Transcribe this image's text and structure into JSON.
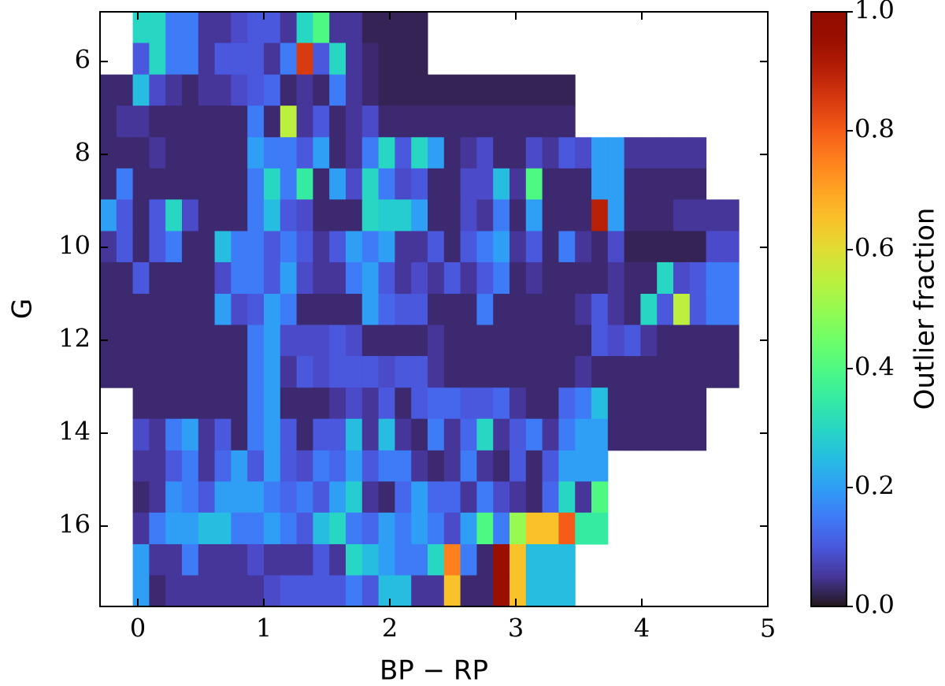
{
  "chart_data": {
    "type": "heatmap",
    "colormap": "turbo",
    "xlabel": "BP − RP",
    "ylabel": "G",
    "colorbar_label": "Outlier fraction",
    "xlim": [
      -0.3,
      5
    ],
    "ylim": [
      17.73,
      4.93
    ],
    "clim": [
      0,
      1
    ],
    "xticks": [
      0,
      1,
      2,
      3,
      4,
      5
    ],
    "yticks": [
      6,
      8,
      10,
      12,
      14,
      16
    ],
    "cticks": [
      {
        "value": 0,
        "label": "0.0"
      },
      {
        "value": 0.2,
        "label": "0.2"
      },
      {
        "value": 0.4,
        "label": "0.4"
      },
      {
        "value": 0.6,
        "label": "0.6"
      },
      {
        "value": 0.8,
        "label": "0.8"
      },
      {
        "value": 1,
        "label": "1.0"
      }
    ],
    "xbins": [
      -0.3,
      -0.17,
      -0.04,
      0.09,
      0.22,
      0.35,
      0.48,
      0.61,
      0.74,
      0.87,
      1.0,
      1.13,
      1.26,
      1.39,
      1.52,
      1.65,
      1.78,
      1.91,
      2.04,
      2.17,
      2.3,
      2.43,
      2.56,
      2.69,
      2.82,
      2.95,
      3.08,
      3.21,
      3.34,
      3.47,
      3.6,
      3.73,
      3.86,
      3.99,
      4.12,
      4.25,
      4.38,
      4.51,
      4.64,
      4.77
    ],
    "ybins": [
      4.93,
      5.6,
      6.28,
      6.95,
      7.63,
      8.3,
      8.97,
      9.65,
      10.32,
      11.0,
      11.67,
      12.34,
      13.02,
      13.69,
      14.37,
      15.04,
      15.71,
      16.39,
      17.06,
      17.73
    ],
    "values": [
      [
        null,
        null,
        0.3,
        0.3,
        0.15,
        0.15,
        0.05,
        0.05,
        0.08,
        0.1,
        0.1,
        0.05,
        0.3,
        0.4,
        0.05,
        0.05,
        0.02,
        0.02,
        0.02,
        0.02,
        null,
        null,
        null,
        null,
        null,
        null,
        null,
        null,
        null,
        null,
        null,
        null,
        null,
        null,
        null,
        null,
        null,
        null,
        null
      ],
      [
        null,
        null,
        0.1,
        0.3,
        0.15,
        0.15,
        0.05,
        0.1,
        0.1,
        0.1,
        0.05,
        0.15,
        0.85,
        0.1,
        0.3,
        0.05,
        0.03,
        0.02,
        0.02,
        0.02,
        null,
        null,
        null,
        null,
        null,
        null,
        null,
        null,
        null,
        null,
        null,
        null,
        null,
        null,
        null,
        null,
        null,
        null,
        null
      ],
      [
        0.03,
        0.03,
        0.25,
        0.08,
        0.05,
        0.03,
        0.05,
        0.05,
        0.08,
        0.1,
        0.12,
        0.03,
        0.05,
        0.03,
        0.15,
        0.05,
        0.03,
        0.02,
        0.02,
        0.02,
        0.02,
        0.02,
        0.02,
        0.02,
        0.02,
        0.02,
        0.02,
        0.02,
        0.02,
        null,
        null,
        null,
        null,
        null,
        null,
        null,
        null,
        null,
        null
      ],
      [
        0.03,
        0.05,
        0.05,
        0.03,
        0.03,
        0.03,
        0.03,
        0.03,
        0.03,
        0.15,
        0.03,
        0.55,
        0.05,
        0.1,
        0.03,
        0.05,
        0.08,
        0.03,
        0.03,
        0.03,
        0.03,
        0.03,
        0.03,
        0.03,
        0.03,
        0.03,
        0.03,
        0.03,
        0.03,
        null,
        null,
        null,
        null,
        null,
        null,
        null,
        null,
        null,
        null
      ],
      [
        0.03,
        0.03,
        0.03,
        0.05,
        0.03,
        0.03,
        0.03,
        0.03,
        0.03,
        0.2,
        0.15,
        0.15,
        0.1,
        0.2,
        0.03,
        0.05,
        0.15,
        0.3,
        0.1,
        0.3,
        0.2,
        0.03,
        0.05,
        0.08,
        0.03,
        0.03,
        0.08,
        0.05,
        0.1,
        0.08,
        0.2,
        0.2,
        0.05,
        0.05,
        0.05,
        0.05,
        0.05,
        null,
        null
      ],
      [
        0.03,
        0.15,
        0.03,
        0.03,
        0.03,
        0.03,
        0.03,
        0.03,
        0.03,
        0.15,
        0.3,
        0.15,
        0.35,
        0.03,
        0.2,
        0.08,
        0.3,
        0.15,
        0.08,
        0.1,
        0.03,
        0.03,
        0.08,
        0.08,
        0.25,
        0.05,
        0.4,
        0.03,
        0.03,
        0.03,
        0.2,
        0.2,
        0.03,
        0.03,
        0.03,
        0.03,
        0.03,
        null,
        null
      ],
      [
        0.2,
        0.1,
        0.03,
        0.1,
        0.3,
        0.08,
        0.03,
        0.03,
        0.03,
        0.15,
        0.25,
        0.1,
        0.08,
        0.03,
        0.03,
        0.03,
        0.3,
        0.28,
        0.28,
        0.2,
        0.03,
        0.03,
        0.08,
        0.05,
        0.15,
        0.03,
        0.2,
        0.03,
        0.03,
        0.03,
        0.9,
        0.2,
        0.03,
        0.03,
        0.03,
        0.05,
        0.05,
        0.05,
        0.05
      ],
      [
        0.05,
        0.1,
        0.03,
        0.1,
        0.15,
        0.03,
        0.03,
        0.25,
        0.15,
        0.15,
        0.1,
        0.15,
        0.1,
        0.05,
        0.1,
        0.2,
        0.15,
        0.2,
        0.05,
        0.05,
        0.1,
        0.03,
        0.1,
        0.15,
        0.2,
        0.05,
        0.1,
        0.03,
        0.15,
        0.05,
        0.03,
        0.08,
        0.02,
        0.02,
        0.02,
        0.02,
        0.02,
        0.08,
        0.08
      ],
      [
        0.03,
        0.03,
        0.1,
        0.03,
        0.03,
        0.03,
        0.03,
        0.08,
        0.15,
        0.15,
        0.1,
        0.2,
        0.08,
        0.05,
        0.05,
        0.15,
        0.2,
        0.1,
        0.05,
        0.08,
        0.05,
        0.1,
        0.05,
        0.1,
        0.15,
        0.03,
        0.05,
        0.03,
        0.03,
        0.03,
        0.03,
        0.05,
        0.03,
        0.03,
        0.3,
        0.08,
        0.1,
        0.15,
        0.15
      ],
      [
        0.03,
        0.03,
        0.03,
        0.03,
        0.03,
        0.03,
        0.03,
        0.2,
        0.08,
        0.1,
        0.2,
        0.15,
        0.03,
        0.03,
        0.03,
        0.03,
        0.2,
        0.12,
        0.1,
        0.1,
        0.03,
        0.03,
        0.03,
        0.15,
        0.03,
        0.03,
        0.03,
        0.03,
        0.03,
        0.05,
        0.1,
        0.05,
        0.03,
        0.3,
        0.1,
        0.55,
        0.1,
        0.15,
        0.15
      ],
      [
        0.03,
        0.03,
        0.03,
        0.03,
        0.03,
        0.03,
        0.03,
        0.03,
        0.03,
        0.15,
        0.2,
        0.08,
        0.08,
        0.08,
        0.1,
        0.08,
        0.03,
        0.03,
        0.03,
        0.03,
        0.05,
        0.03,
        0.03,
        0.03,
        0.03,
        0.03,
        0.03,
        0.03,
        0.03,
        0.03,
        0.1,
        0.08,
        0.1,
        0.05,
        0.03,
        0.03,
        0.03,
        0.03,
        0.03
      ],
      [
        0.03,
        0.03,
        0.03,
        0.03,
        0.03,
        0.03,
        0.03,
        0.03,
        0.03,
        0.15,
        0.2,
        0.05,
        0.1,
        0.08,
        0.1,
        0.1,
        0.1,
        0.08,
        0.1,
        0.1,
        0.05,
        0.03,
        0.03,
        0.03,
        0.03,
        0.03,
        0.03,
        0.03,
        0.03,
        0.05,
        0.03,
        0.03,
        0.03,
        0.03,
        0.03,
        0.03,
        0.03,
        0.03,
        0.03
      ],
      [
        null,
        null,
        0.03,
        0.03,
        0.03,
        0.03,
        0.03,
        0.03,
        0.03,
        0.15,
        0.2,
        0.03,
        0.03,
        0.03,
        0.05,
        0.08,
        0.05,
        0.1,
        0.03,
        0.1,
        0.12,
        0.12,
        0.1,
        0.1,
        0.12,
        0.05,
        0.03,
        0.03,
        0.12,
        0.15,
        0.25,
        0.03,
        0.03,
        0.03,
        0.03,
        0.03,
        0.03,
        null,
        null
      ],
      [
        null,
        null,
        0.08,
        0.05,
        0.15,
        0.2,
        0.05,
        0.1,
        0.03,
        0.15,
        0.2,
        0.1,
        0.03,
        0.1,
        0.1,
        0.25,
        0.05,
        0.25,
        0.05,
        0.03,
        0.15,
        0.05,
        0.12,
        0.3,
        0.05,
        0.1,
        0.15,
        0.05,
        0.15,
        0.2,
        0.2,
        0.03,
        0.03,
        0.03,
        0.03,
        0.03,
        0.03,
        null,
        null
      ],
      [
        null,
        null,
        0.05,
        0.05,
        0.1,
        0.15,
        0.05,
        0.12,
        0.2,
        0.1,
        0.2,
        0.1,
        0.08,
        0.15,
        0.12,
        0.2,
        0.1,
        0.15,
        0.15,
        0.05,
        0.03,
        0.05,
        0.15,
        0.05,
        0.03,
        0.1,
        0.03,
        0.1,
        0.2,
        0.2,
        0.2,
        null,
        null,
        null,
        null,
        null,
        null,
        null,
        null
      ],
      [
        null,
        null,
        0.03,
        0.05,
        0.18,
        0.15,
        0.1,
        0.2,
        0.2,
        0.2,
        0.15,
        0.12,
        0.15,
        0.1,
        0.2,
        0.28,
        0.05,
        0.03,
        0.12,
        0.2,
        0.12,
        0.12,
        0.05,
        0.15,
        0.08,
        0.05,
        0.03,
        0.12,
        0.3,
        0.05,
        0.4,
        null,
        null,
        null,
        null,
        null,
        null,
        null,
        null
      ],
      [
        null,
        null,
        0.05,
        0.15,
        0.2,
        0.2,
        0.25,
        0.25,
        0.15,
        0.15,
        0.2,
        0.15,
        0.1,
        0.25,
        0.3,
        0.15,
        0.12,
        0.2,
        0.15,
        0.2,
        0.15,
        0.08,
        0.2,
        0.4,
        0.15,
        0.5,
        0.65,
        0.65,
        0.8,
        0.35,
        0.35,
        null,
        null,
        null,
        null,
        null,
        null,
        null,
        null
      ],
      [
        null,
        null,
        0.2,
        0.05,
        0.05,
        0.15,
        0.05,
        0.05,
        0.05,
        0.08,
        0.05,
        0.05,
        0.05,
        0.1,
        0.05,
        0.3,
        0.25,
        0.2,
        0.15,
        0.15,
        0.3,
        0.75,
        0.15,
        0.03,
        0.95,
        0.65,
        0.25,
        0.25,
        0.25,
        null,
        null,
        null,
        null,
        null,
        null,
        null,
        null,
        null,
        null
      ],
      [
        null,
        null,
        0.2,
        0.03,
        0.05,
        0.05,
        0.05,
        0.05,
        0.05,
        0.05,
        0.08,
        0.1,
        0.1,
        0.1,
        0.1,
        0.15,
        0.1,
        0.25,
        0.25,
        0.05,
        0.05,
        0.65,
        0.03,
        0.03,
        0.95,
        0.65,
        0.25,
        0.25,
        0.25,
        null,
        null,
        null,
        null,
        null,
        null,
        null,
        null,
        null,
        null
      ]
    ]
  }
}
